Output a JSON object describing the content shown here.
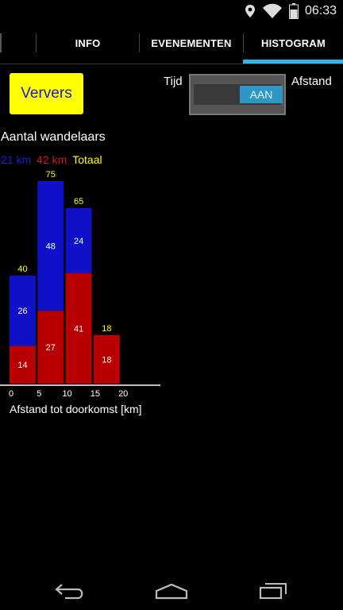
{
  "status": {
    "time": "06:33",
    "icons": [
      "location-icon",
      "wifi-icon",
      "battery-icon"
    ]
  },
  "tabs": [
    {
      "label": "INFO",
      "selected": false
    },
    {
      "label": "EVENEMENTEN",
      "selected": false
    },
    {
      "label": "HISTOGRAM",
      "selected": true
    }
  ],
  "controls": {
    "refresh_label": "Ververs",
    "left_label": "Tijd",
    "right_label": "Afstand",
    "toggle_text": "AAN"
  },
  "colors": {
    "accent": "#33b5e5",
    "series_21": "#1010c8",
    "series_42": "#b80000",
    "total": "#ffff00"
  },
  "chart_data": {
    "type": "bar",
    "title": "Aantal wandelaars",
    "legend": [
      "21 km",
      "42 km",
      "Totaal"
    ],
    "xlabel": "Afstand tot doorkomst [km]",
    "x_ticks": [
      "0",
      "5",
      "10",
      "15",
      "20"
    ],
    "bins": [
      "0-5",
      "5-10",
      "10-15",
      "15-20"
    ],
    "series": [
      {
        "name": "42 km",
        "values": [
          14,
          27,
          41,
          18
        ]
      },
      {
        "name": "21 km",
        "values": [
          26,
          48,
          24,
          0
        ]
      }
    ],
    "totals": [
      40,
      75,
      65,
      18
    ]
  },
  "nav": [
    "back-icon",
    "home-icon",
    "recent-apps-icon"
  ]
}
